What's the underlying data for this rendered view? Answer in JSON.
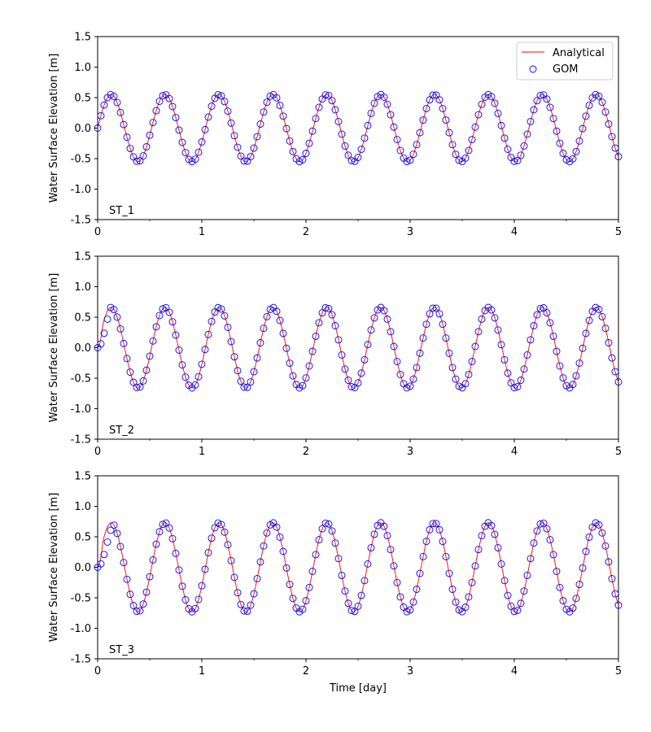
{
  "chart_data": [
    {
      "type": "line",
      "panel_label": "ST_1",
      "ylabel": "Water Surface Elevation [m]",
      "xlabel": "",
      "xlim": [
        0,
        5
      ],
      "ylim": [
        -1.5,
        1.5
      ],
      "xticks": [
        "0",
        "1",
        "2",
        "3",
        "4",
        "5"
      ],
      "yticks": [
        "-1.5",
        "-1.0",
        "-0.5",
        "0.0",
        "0.5",
        "1.0",
        "1.5"
      ],
      "grid": false,
      "legend": {
        "placement": "top-right",
        "entries": [
          "Analytical",
          "GOM"
        ]
      },
      "series": [
        {
          "name": "Analytical",
          "style": "line",
          "color": "#ff0000",
          "amplitude": 0.55,
          "period_days": 0.5175,
          "ramp_days": 0.0,
          "x_range": [
            0,
            5
          ]
        },
        {
          "name": "GOM",
          "style": "markers",
          "color": "#0000ff",
          "amplitude": 0.55,
          "period_days": 0.5175,
          "ramp_days": 0.0,
          "x_range": [
            0,
            5
          ]
        }
      ]
    },
    {
      "type": "line",
      "panel_label": "ST_2",
      "ylabel": "Water Surface Elevation [m]",
      "xlabel": "",
      "xlim": [
        0,
        5
      ],
      "ylim": [
        -1.5,
        1.5
      ],
      "xticks": [
        "0",
        "1",
        "2",
        "3",
        "4",
        "5"
      ],
      "yticks": [
        "-1.5",
        "-1.0",
        "-0.5",
        "0.0",
        "0.5",
        "1.0",
        "1.5"
      ],
      "grid": false,
      "series": [
        {
          "name": "Analytical",
          "style": "line",
          "color": "#ff0000",
          "amplitude": 0.66,
          "period_days": 0.5175,
          "ramp_days": 0.05,
          "x_range": [
            0,
            5
          ]
        },
        {
          "name": "GOM",
          "style": "markers",
          "color": "#0000ff",
          "amplitude": 0.66,
          "period_days": 0.5175,
          "ramp_days": 0.12,
          "x_range": [
            0,
            5
          ]
        }
      ]
    },
    {
      "type": "line",
      "panel_label": "ST_3",
      "ylabel": "Water Surface Elevation [m]",
      "xlabel": "Time [day]",
      "xlim": [
        0,
        5
      ],
      "ylim": [
        -1.5,
        1.5
      ],
      "xticks": [
        "0",
        "1",
        "2",
        "3",
        "4",
        "5"
      ],
      "yticks": [
        "-1.5",
        "-1.0",
        "-0.5",
        "0.0",
        "0.5",
        "1.0",
        "1.5"
      ],
      "grid": false,
      "series": [
        {
          "name": "Analytical",
          "style": "line",
          "color": "#ff0000",
          "amplitude": 0.73,
          "period_days": 0.5175,
          "ramp_days": 0.05,
          "x_range": [
            0,
            5
          ]
        },
        {
          "name": "GOM",
          "style": "markers",
          "color": "#0000ff",
          "amplitude": 0.73,
          "period_days": 0.5175,
          "ramp_days": 0.15,
          "x_range": [
            0,
            5
          ]
        }
      ]
    }
  ]
}
